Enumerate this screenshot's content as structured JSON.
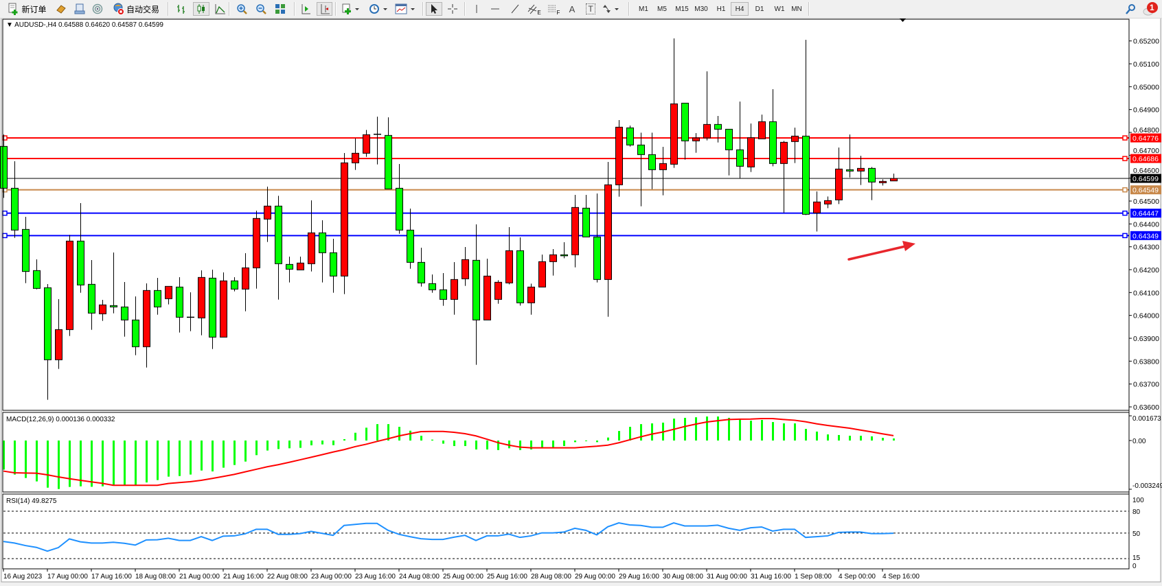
{
  "toolbar": {
    "new_order_label": "新订单",
    "auto_trading_label": "自动交易",
    "timeframes": [
      "M1",
      "M5",
      "M15",
      "M30",
      "H1",
      "H4",
      "D1",
      "W1",
      "MN"
    ],
    "active_timeframe": "H4",
    "line_study_labels": {
      "channel": "E",
      "fibo": "F",
      "text": "A",
      "label": "T"
    },
    "notification_count": "1",
    "icons": [
      "new-order-icon",
      "gold-icon",
      "market-watch-icon",
      "signals-icon",
      "auto-trading-icon",
      "bar-chart-icon",
      "candlestick-icon",
      "line-chart-icon",
      "zoom-in-icon",
      "zoom-out-icon",
      "tile-windows-icon",
      "chart-shift-icon",
      "auto-scroll-icon",
      "indicators-icon",
      "periods-icon",
      "templates-icon",
      "cursor-icon",
      "crosshair-icon",
      "vertical-line-icon",
      "horizontal-line-icon",
      "trendline-icon",
      "search-icon",
      "notification-icon"
    ]
  },
  "chart": {
    "header": "AUDUSD-,H4  0.64588 0.64620 0.64587 0.64599",
    "colors": {
      "bull": "#ff0000",
      "bear": "#00ff00",
      "outline": "#000000",
      "rsi": "#1e90ff",
      "macd_hist": "#00ff00",
      "macd_signal": "#ff0000",
      "arrow": "#e8262c"
    },
    "price_ticks": [
      "0.65200",
      "0.65100",
      "0.65000",
      "0.64900",
      "0.64800",
      "0.64700",
      "0.64600",
      "0.64500",
      "0.64400",
      "0.64300",
      "0.64200",
      "0.64100",
      "0.64000",
      "0.63900",
      "0.63800",
      "0.63700",
      "0.63600"
    ],
    "levels": [
      {
        "price": 0.64776,
        "label": "0.64776",
        "color": "#ff0000",
        "text_color": "#ffffff",
        "kind": "horizontal-line"
      },
      {
        "price": 0.64686,
        "label": "0.64686",
        "color": "#ff0000",
        "text_color": "#ffffff",
        "kind": "horizontal-line"
      },
      {
        "price": 0.64599,
        "label": "0.64599",
        "color": "#000000",
        "text_color": "#ffffff",
        "kind": "bid-line"
      },
      {
        "price": 0.64549,
        "label": "0.64549",
        "color": "#c8884a",
        "text_color": "#ffffff",
        "kind": "horizontal-line"
      },
      {
        "price": 0.64447,
        "label": "0.64447",
        "color": "#0000ff",
        "text_color": "#ffffff",
        "kind": "horizontal-line"
      },
      {
        "price": 0.64349,
        "label": "0.64349",
        "color": "#0000ff",
        "text_color": "#ffffff",
        "kind": "horizontal-line"
      }
    ],
    "time_labels": [
      "16 Aug 2023",
      "17 Aug 00:00",
      "17 Aug 16:00",
      "18 Aug 08:00",
      "21 Aug 00:00",
      "21 Aug 16:00",
      "22 Aug 08:00",
      "23 Aug 00:00",
      "23 Aug 16:00",
      "24 Aug 08:00",
      "25 Aug 00:00",
      "25 Aug 16:00",
      "28 Aug 08:00",
      "29 Aug 00:00",
      "29 Aug 16:00",
      "30 Aug 08:00",
      "31 Aug 00:00",
      "31 Aug 16:00",
      "1 Sep 08:00",
      "4 Sep 00:00",
      "4 Sep 16:00"
    ]
  },
  "chart_data": {
    "type": "candlestick",
    "symbol": "AUDUSD-",
    "timeframe": "H4",
    "ylim": [
      0.636,
      0.6525
    ],
    "ohlc_order": [
      "open",
      "high",
      "low",
      "close"
    ],
    "candles": [
      [
        0.64739,
        0.64791,
        0.64514,
        0.64556
      ],
      [
        0.64556,
        0.64674,
        0.64339,
        0.64373
      ],
      [
        0.64376,
        0.64431,
        0.64141,
        0.64192
      ],
      [
        0.64196,
        0.64245,
        0.64114,
        0.64118
      ],
      [
        0.64121,
        0.64137,
        0.63631,
        0.63806
      ],
      [
        0.63806,
        0.64071,
        0.63766,
        0.63938
      ],
      [
        0.63938,
        0.64352,
        0.6391,
        0.64325
      ],
      [
        0.64325,
        0.64491,
        0.64099,
        0.64133
      ],
      [
        0.64136,
        0.64242,
        0.63937,
        0.6401
      ],
      [
        0.64007,
        0.64068,
        0.63976,
        0.64046
      ],
      [
        0.64043,
        0.64275,
        0.64009,
        0.64037
      ],
      [
        0.64037,
        0.64146,
        0.63907,
        0.6398
      ],
      [
        0.6398,
        0.64083,
        0.63826,
        0.63863
      ],
      [
        0.63863,
        0.6414,
        0.63772,
        0.64109
      ],
      [
        0.64109,
        0.64164,
        0.64003,
        0.64037
      ],
      [
        0.64073,
        0.64127,
        0.64048,
        0.64127
      ],
      [
        0.64124,
        0.64167,
        0.63925,
        0.63992
      ],
      [
        0.63992,
        0.64101,
        0.63931,
        0.63992
      ],
      [
        0.63989,
        0.64197,
        0.63913,
        0.64166
      ],
      [
        0.64163,
        0.642,
        0.63853,
        0.63905
      ],
      [
        0.63905,
        0.64188,
        0.63905,
        0.64151
      ],
      [
        0.64151,
        0.64167,
        0.64105,
        0.64115
      ],
      [
        0.64115,
        0.64272,
        0.64018,
        0.64208
      ],
      [
        0.64208,
        0.64458,
        0.64117,
        0.64424
      ],
      [
        0.64421,
        0.64563,
        0.64321,
        0.64478
      ],
      [
        0.64478,
        0.64523,
        0.64069,
        0.64226
      ],
      [
        0.64223,
        0.64257,
        0.64144,
        0.64202
      ],
      [
        0.64199,
        0.64257,
        0.64199,
        0.64229
      ],
      [
        0.64226,
        0.64503,
        0.64192,
        0.64361
      ],
      [
        0.64361,
        0.64416,
        0.64144,
        0.64274
      ],
      [
        0.64274,
        0.64335,
        0.64099,
        0.64172
      ],
      [
        0.64172,
        0.6471,
        0.64093,
        0.64667
      ],
      [
        0.64667,
        0.64774,
        0.64636,
        0.64709
      ],
      [
        0.64709,
        0.64811,
        0.64693,
        0.6479
      ],
      [
        0.64792,
        0.64869,
        0.6466,
        0.64792
      ],
      [
        0.64787,
        0.64866,
        0.64553,
        0.64553
      ],
      [
        0.64556,
        0.64662,
        0.64357,
        0.64373
      ],
      [
        0.64373,
        0.64467,
        0.64204,
        0.64232
      ],
      [
        0.64232,
        0.64296,
        0.64126,
        0.64142
      ],
      [
        0.64139,
        0.64179,
        0.64099,
        0.64112
      ],
      [
        0.64112,
        0.64185,
        0.64042,
        0.6407
      ],
      [
        0.6407,
        0.64233,
        0.64003,
        0.64157
      ],
      [
        0.6416,
        0.64299,
        0.64129,
        0.64244
      ],
      [
        0.64241,
        0.64398,
        0.63784,
        0.6398
      ],
      [
        0.6398,
        0.64248,
        0.6398,
        0.64172
      ],
      [
        0.6407,
        0.64154,
        0.64051,
        0.64145
      ],
      [
        0.64142,
        0.64386,
        0.64136,
        0.64283
      ],
      [
        0.64283,
        0.64341,
        0.64043,
        0.64055
      ],
      [
        0.64055,
        0.64139,
        0.64003,
        0.64124
      ],
      [
        0.64124,
        0.64266,
        0.64124,
        0.64235
      ],
      [
        0.64235,
        0.6429,
        0.64174,
        0.64265
      ],
      [
        0.64265,
        0.6432,
        0.6425,
        0.64264
      ],
      [
        0.64265,
        0.64527,
        0.6421,
        0.64472
      ],
      [
        0.64469,
        0.64527,
        0.64343,
        0.64343
      ],
      [
        0.64343,
        0.64533,
        0.64144,
        0.64157
      ],
      [
        0.64157,
        0.64671,
        0.63994,
        0.64571
      ],
      [
        0.64571,
        0.64854,
        0.64519,
        0.64823
      ],
      [
        0.6482,
        0.6483,
        0.64738,
        0.64745
      ],
      [
        0.64745,
        0.64799,
        0.64477,
        0.64703
      ],
      [
        0.64703,
        0.64799,
        0.64552,
        0.64637
      ],
      [
        0.64637,
        0.64737,
        0.64525,
        0.64664
      ],
      [
        0.64661,
        0.65211,
        0.64645,
        0.64925
      ],
      [
        0.64928,
        0.64928,
        0.64681,
        0.64763
      ],
      [
        0.64763,
        0.64797,
        0.64711,
        0.64776
      ],
      [
        0.64776,
        0.65067,
        0.64765,
        0.64835
      ],
      [
        0.64835,
        0.64872,
        0.64756,
        0.64814
      ],
      [
        0.64814,
        0.64814,
        0.64612,
        0.64724
      ],
      [
        0.64724,
        0.64935,
        0.64598,
        0.64652
      ],
      [
        0.64649,
        0.64839,
        0.64627,
        0.64777
      ],
      [
        0.64772,
        0.64878,
        0.64772,
        0.64847
      ],
      [
        0.64847,
        0.64989,
        0.64652,
        0.64664
      ],
      [
        0.64664,
        0.64763,
        0.64449,
        0.64757
      ],
      [
        0.6476,
        0.64821,
        0.64666,
        0.64784
      ],
      [
        0.64784,
        0.65205,
        0.64439,
        0.64442
      ],
      [
        0.64448,
        0.64542,
        0.64367,
        0.64496
      ],
      [
        0.64487,
        0.6452,
        0.64469,
        0.64502
      ],
      [
        0.64505,
        0.64734,
        0.64487,
        0.6464
      ],
      [
        0.64637,
        0.64791,
        0.64603,
        0.64631
      ],
      [
        0.64631,
        0.64698,
        0.6457,
        0.64643
      ],
      [
        0.64643,
        0.64649,
        0.64504,
        0.64583
      ],
      [
        0.6458,
        0.64595,
        0.64568,
        0.64586
      ],
      [
        0.64588,
        0.6462,
        0.64587,
        0.64599
      ]
    ],
    "macd": {
      "label": "MACD(12,26,9) 0.000136 0.000332",
      "axis_labels": [
        "0.001673",
        "0.00",
        "-0.003249"
      ],
      "ylim": [
        -0.003249,
        0.001673
      ],
      "histogram": [
        -0.00195,
        -0.00228,
        -0.00251,
        -0.00274,
        -0.00316,
        -0.00325,
        -0.00311,
        -0.00307,
        -0.0031,
        -0.00307,
        -0.003,
        -0.003,
        -0.003,
        -0.00281,
        -0.00265,
        -0.00242,
        -0.00238,
        -0.00228,
        -0.00201,
        -0.00207,
        -0.00182,
        -0.00164,
        -0.00141,
        -0.00098,
        -0.00067,
        -0.00057,
        -0.00052,
        -0.00049,
        -0.00032,
        -0.00026,
        -0.00031,
        9e-05,
        0.00052,
        0.00086,
        0.0011,
        0.0011,
        0.00092,
        0.00066,
        0.00032,
        6e-05,
        -0.00021,
        -0.00037,
        -0.00037,
        -0.0006,
        -0.0006,
        -0.00064,
        -0.00052,
        -0.00064,
        -0.0006,
        -0.00049,
        -0.00049,
        -0.00037,
        -0.00011,
        -3e-05,
        -0.00011,
        0.0002,
        0.00064,
        0.00092,
        0.0011,
        0.00115,
        0.0012,
        0.00147,
        0.00152,
        0.00156,
        0.00161,
        0.00161,
        0.00152,
        0.00143,
        0.00133,
        0.00138,
        0.00124,
        0.00115,
        0.00115,
        0.00078,
        0.0006,
        0.00041,
        0.00037,
        0.00032,
        0.00032,
        0.00028,
        0.00018,
        0.00014
      ],
      "signal": [
        -0.00205,
        -0.00216,
        -0.00218,
        -0.00219,
        -0.0023,
        -0.00244,
        -0.00256,
        -0.00267,
        -0.00277,
        -0.00287,
        -0.003,
        -0.003,
        -0.003,
        -0.003,
        -0.003,
        -0.00288,
        -0.00282,
        -0.00276,
        -0.00267,
        -0.00254,
        -0.00241,
        -0.00227,
        -0.0021,
        -0.00193,
        -0.00176,
        -0.00162,
        -0.00146,
        -0.00129,
        -0.00112,
        -0.00095,
        -0.00077,
        -0.00061,
        -0.00041,
        -0.00025,
        -6e-05,
        0.00012,
        0.00031,
        0.00046,
        0.0006,
        0.00061,
        0.00061,
        0.00055,
        0.00046,
        0.00031,
        9e-05,
        -0.00014,
        -0.00031,
        -0.00044,
        -0.00049,
        -0.00049,
        -0.00049,
        -0.00049,
        -0.00049,
        -0.00043,
        -0.00038,
        -0.00031,
        -0.00015,
        5e-05,
        0.00025,
        0.00043,
        0.00057,
        0.00075,
        0.00094,
        0.0011,
        0.00124,
        0.00133,
        0.00141,
        0.00143,
        0.00144,
        0.00147,
        0.00147,
        0.00141,
        0.00136,
        0.00126,
        0.00112,
        0.00101,
        0.00092,
        0.00083,
        0.0007,
        0.00058,
        0.00045,
        0.00033
      ]
    },
    "rsi": {
      "label": "RSI(14) 49.8275",
      "levels": [
        80,
        50,
        15
      ],
      "axis_labels": [
        "100",
        "80",
        "50",
        "15",
        "0"
      ],
      "ylim": [
        0,
        100
      ],
      "values": [
        38.5,
        36.4,
        32.9,
        30.4,
        25.2,
        30.1,
        42.0,
        38.0,
        36.4,
        36.4,
        37.4,
        36.0,
        33.6,
        40.6,
        40.9,
        43.0,
        39.9,
        39.9,
        45.1,
        39.9,
        45.8,
        46.2,
        49.0,
        55.2,
        55.2,
        48.3,
        48.3,
        49.3,
        52.4,
        49.7,
        46.9,
        60.5,
        61.9,
        63.3,
        63.3,
        53.8,
        48.3,
        45.1,
        42.3,
        41.3,
        41.3,
        44.4,
        46.9,
        39.9,
        46.2,
        46.2,
        48.6,
        44.1,
        46.2,
        50.3,
        50.3,
        51.4,
        56.6,
        53.8,
        47.6,
        58.7,
        64.0,
        61.2,
        60.5,
        58.0,
        58.0,
        64.0,
        59.8,
        59.8,
        59.8,
        60.8,
        56.6,
        53.8,
        57.3,
        58.4,
        52.8,
        55.2,
        55.2,
        44.1,
        45.1,
        46.2,
        51.0,
        51.4,
        51.4,
        49.3,
        49.3,
        49.83
      ]
    }
  }
}
